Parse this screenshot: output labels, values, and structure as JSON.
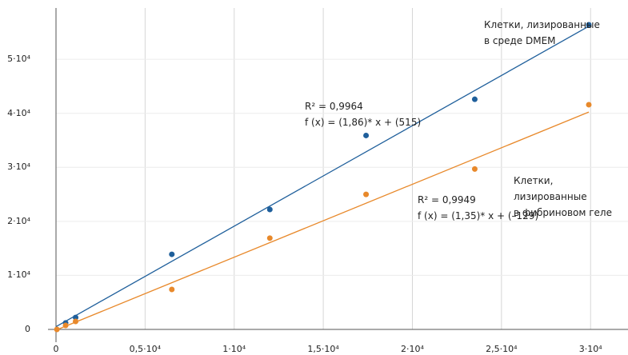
{
  "chart_data": {
    "type": "scatter",
    "xlim": [
      0,
      32100
    ],
    "ylim": [
      0,
      59500
    ],
    "xticks": [
      0,
      {
        "value": 5000,
        "label": "0,5·10⁴"
      },
      {
        "value": 10000,
        "label": "1·10⁴"
      },
      {
        "value": 15000,
        "label": "1,5·10⁴"
      },
      {
        "value": 20000,
        "label": "2·10⁴"
      },
      {
        "value": 25000,
        "label": "2,5·10⁴"
      },
      {
        "value": 30000,
        "label": "3·10⁴"
      }
    ],
    "yticks": [
      0,
      {
        "value": 10000,
        "label": "1·10⁴"
      },
      {
        "value": 20000,
        "label": "2·10⁴"
      },
      {
        "value": 30000,
        "label": "3·10⁴"
      },
      {
        "value": 40000,
        "label": "4·10⁴"
      },
      {
        "value": 50000,
        "label": "5·10⁴"
      }
    ],
    "grid": true,
    "series": [
      {
        "name": "Клетки, лизированные\nв среде DMEM",
        "color": "#1f5f9b",
        "x": [
          540,
          1100,
          6500,
          12000,
          17400,
          23500,
          29900
        ],
        "values": [
          1200,
          2200,
          13900,
          22200,
          35900,
          42600,
          56400
        ],
        "fit": {
          "slope": 1.86,
          "intercept": 515,
          "r2_label": "R² = 0,9964",
          "formula": "f (x) = (1,86)* x + (515)"
        }
      },
      {
        "name": "Клетки, лизированные\nв фибриновом геле",
        "color": "#e8892b",
        "x": [
          50,
          540,
          1100,
          6500,
          12000,
          17400,
          23500,
          29900
        ],
        "values": [
          0,
          740,
          1480,
          7400,
          16900,
          25000,
          29700,
          41600
        ],
        "fit": {
          "slope": 1.35,
          "intercept": -129,
          "r2_label": "R² = 0,9949",
          "formula": "f (x) = (1,35)* x + (–129)"
        }
      }
    ]
  }
}
